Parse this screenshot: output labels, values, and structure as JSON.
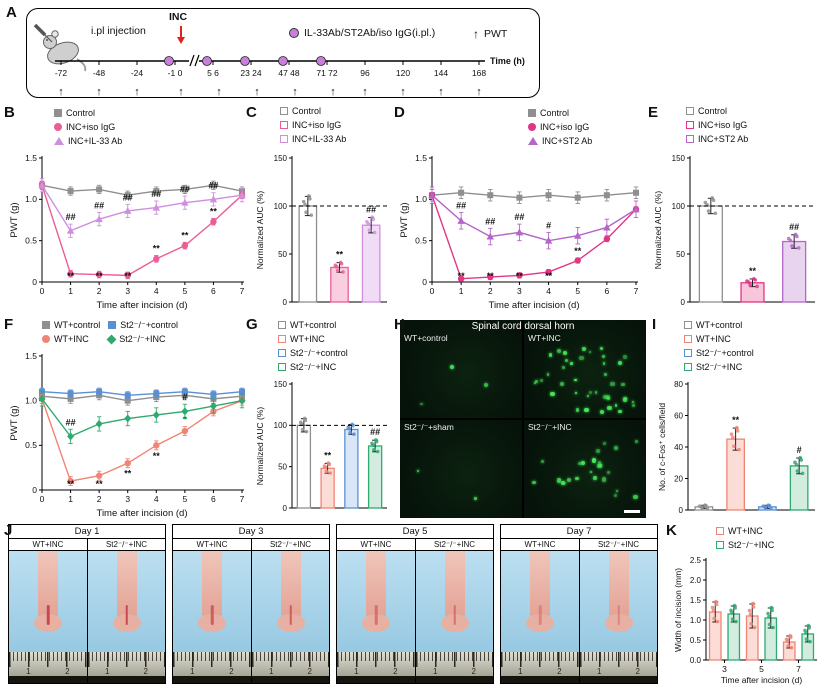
{
  "panel_labels": {
    "A": "A",
    "B": "B",
    "C": "C",
    "D": "D",
    "E": "E",
    "F": "F",
    "G": "G",
    "H": "H",
    "I": "I",
    "J": "J",
    "K": "K"
  },
  "panel_a": {
    "injection_label": "i.pl injection",
    "inc_label": "INC",
    "ab_legend": "IL-33Ab/ST2Ab/iso IgG(i.pl.)",
    "pwt_arrow": "↑",
    "pwt_legend": "PWT",
    "time_label": "Time (h)",
    "arrow_char": "↑",
    "circle_color": "#c77fd9",
    "ticks": [
      {
        "label": "-72",
        "arrow": true
      },
      {
        "label": "-48",
        "arrow": true
      },
      {
        "label": "-24",
        "arrow": true
      },
      {
        "label": "-1 0",
        "arrow": true,
        "circle": true,
        "inc": true,
        "break_after": true
      },
      {
        "label": "5 6",
        "arrow": true,
        "circle": true
      },
      {
        "label": "23 24",
        "arrow": true,
        "circle": true
      },
      {
        "label": "47 48",
        "arrow": true,
        "circle": true
      },
      {
        "label": "71 72",
        "arrow": true,
        "circle": true
      },
      {
        "label": "96",
        "arrow": true
      },
      {
        "label": "120",
        "arrow": true
      },
      {
        "label": "144",
        "arrow": true
      },
      {
        "label": "168",
        "arrow": true
      }
    ]
  },
  "legends": {
    "B": {
      "cols": 1,
      "items": [
        {
          "label": "Control",
          "marker": "square",
          "color": "#8f8f8f"
        },
        {
          "label": "INC+iso IgG",
          "marker": "circle",
          "color": "#ea5d97"
        },
        {
          "label": "INC+IL-33 Ab",
          "marker": "triangle",
          "color": "#cf8fdf"
        }
      ]
    },
    "C": {
      "cols": 1,
      "items": [
        {
          "label": "Control",
          "marker": "square-open",
          "color": "#8f8f8f"
        },
        {
          "label": "INC+iso IgG",
          "marker": "square-open",
          "color": "#ea5d97"
        },
        {
          "label": "INC+IL-33 Ab",
          "marker": "square-open",
          "color": "#cf8fdf"
        }
      ]
    },
    "D": {
      "cols": 1,
      "items": [
        {
          "label": "Control",
          "marker": "square",
          "color": "#8f8f8f"
        },
        {
          "label": "INC+iso IgG",
          "marker": "circle",
          "color": "#e13585"
        },
        {
          "label": "INC+ST2 Ab",
          "marker": "triangle",
          "color": "#b565c8"
        }
      ]
    },
    "E": {
      "cols": 1,
      "items": [
        {
          "label": "Control",
          "marker": "square-open",
          "color": "#8f8f8f"
        },
        {
          "label": "INC+iso IgG",
          "marker": "square-open",
          "color": "#e13585"
        },
        {
          "label": "INC+ST2 Ab",
          "marker": "square-open",
          "color": "#b565c8"
        }
      ]
    },
    "F": {
      "cols": 2,
      "items": [
        {
          "label": "WT+control",
          "marker": "square",
          "color": "#8f8f8f"
        },
        {
          "label": "St2⁻/⁻+control",
          "marker": "square",
          "color": "#5b8fd4"
        },
        {
          "label": "WT+INC",
          "marker": "circle",
          "color": "#f08575"
        },
        {
          "label": "St2⁻/⁻+INC",
          "marker": "diamond",
          "color": "#2eaa70"
        }
      ]
    },
    "G": {
      "cols": 1,
      "items": [
        {
          "label": "WT+control",
          "marker": "square-open",
          "color": "#8f8f8f"
        },
        {
          "label": "WT+INC",
          "marker": "square-open",
          "color": "#f08575"
        },
        {
          "label": "St2⁻/⁻+control",
          "marker": "square-open",
          "color": "#5b8fd4"
        },
        {
          "label": "St2⁻/⁻+INC",
          "marker": "square-open",
          "color": "#2eaa70"
        }
      ]
    },
    "I": {
      "cols": 1,
      "items": [
        {
          "label": "WT+control",
          "marker": "square-open",
          "color": "#8f8f8f"
        },
        {
          "label": "WT+INC",
          "marker": "square-open",
          "color": "#f08575"
        },
        {
          "label": "St2⁻/⁻+control",
          "marker": "square-open",
          "color": "#5b8fd4"
        },
        {
          "label": "St2⁻/⁻+INC",
          "marker": "square-open",
          "color": "#2eaa70"
        }
      ]
    },
    "K": {
      "cols": 1,
      "items": [
        {
          "label": "WT+INC",
          "marker": "square-open",
          "color": "#f08575"
        },
        {
          "label": "St2⁻/⁻+INC",
          "marker": "square-open",
          "color": "#2eaa70"
        }
      ]
    }
  },
  "chart_data": [
    {
      "panel": "B",
      "type": "line",
      "xlabel": "Time after incision (d)",
      "ylabel": "PWT (g)",
      "x": [
        0,
        1,
        2,
        3,
        4,
        5,
        6,
        7
      ],
      "ylim": [
        0,
        1.5
      ],
      "yticks": [
        0,
        0.5,
        1,
        1.5
      ],
      "ytick_labels": [
        "0",
        "0.5",
        "1.0",
        "1.5"
      ],
      "series": [
        {
          "name": "Control",
          "color": "#8f8f8f",
          "marker": "square",
          "err": 0.05,
          "values": [
            1.17,
            1.1,
            1.12,
            1.05,
            1.1,
            1.12,
            1.17,
            1.1
          ]
        },
        {
          "name": "INC+iso IgG",
          "color": "#ea5d97",
          "marker": "circle",
          "err": 0.04,
          "values": [
            1.17,
            0.1,
            0.09,
            0.08,
            0.28,
            0.44,
            0.73,
            1.05
          ],
          "ann_below": {
            "1": "**",
            "2": "**",
            "3": "**"
          },
          "ann_above": {
            "4": "**",
            "5": "**",
            "6": "**"
          }
        },
        {
          "name": "INC+IL-33 Ab",
          "color": "#cf8fdf",
          "marker": "triangle",
          "err": 0.08,
          "values": [
            1.17,
            0.62,
            0.76,
            0.86,
            0.9,
            0.96,
            1.0,
            1.05
          ],
          "ann_above": {
            "1": "##",
            "2": "##",
            "3": "##",
            "4": "##",
            "5": "##",
            "6": "##"
          }
        }
      ]
    },
    {
      "panel": "C",
      "type": "bar",
      "ylabel": "Normalized AUC (%)",
      "ylim": [
        0,
        150
      ],
      "yticks": [
        0,
        50,
        100,
        150
      ],
      "ytick_labels": [
        "0",
        "50",
        "100",
        "150"
      ],
      "dashed_line": 100,
      "categories": [
        "Control",
        "INC+iso IgG",
        "INC+IL-33 Ab"
      ],
      "values": [
        100,
        36,
        80
      ],
      "errors": [
        10,
        5,
        8
      ],
      "fill_colors": [
        "#ffffff",
        "#f9cfe0",
        "#f0dcf6"
      ],
      "edge_colors": [
        "#8f8f8f",
        "#ea5d97",
        "#cf8fdf"
      ],
      "annotations": [
        "",
        "**",
        "##"
      ]
    },
    {
      "panel": "D",
      "type": "line",
      "xlabel": "Time after incision (d)",
      "ylabel": "PWT (g)",
      "x": [
        0,
        1,
        2,
        3,
        4,
        5,
        6,
        7
      ],
      "ylim": [
        0,
        1.5
      ],
      "yticks": [
        0,
        0.5,
        1,
        1.5
      ],
      "ytick_labels": [
        "0",
        "0.5",
        "1.0",
        "1.5"
      ],
      "series": [
        {
          "name": "Control",
          "color": "#8f8f8f",
          "marker": "square",
          "err": 0.07,
          "values": [
            1.05,
            1.08,
            1.05,
            1.02,
            1.05,
            1.02,
            1.05,
            1.08
          ]
        },
        {
          "name": "INC+iso IgG",
          "color": "#e13585",
          "marker": "circle",
          "err": 0.03,
          "values": [
            1.05,
            0.04,
            0.06,
            0.08,
            0.12,
            0.26,
            0.52,
            0.88
          ],
          "ann_below": {
            "1": "**",
            "2": "**",
            "3": "**",
            "4": "**"
          },
          "ann_above": {
            "5": "**",
            "6": "*"
          }
        },
        {
          "name": "INC+ST2 Ab",
          "color": "#b565c8",
          "marker": "triangle",
          "err": 0.1,
          "values": [
            1.05,
            0.74,
            0.55,
            0.6,
            0.5,
            0.56,
            0.66,
            0.88
          ],
          "ann_above": {
            "1": "##",
            "2": "##",
            "3": "##",
            "4": "#"
          }
        }
      ]
    },
    {
      "panel": "E",
      "type": "bar",
      "ylabel": "Normalized AUC (%)",
      "ylim": [
        0,
        150
      ],
      "yticks": [
        0,
        50,
        100,
        150
      ],
      "ytick_labels": [
        "0",
        "50",
        "100",
        "150"
      ],
      "dashed_line": 100,
      "categories": [
        "Control",
        "INC+iso IgG",
        "INC+ST2 Ab"
      ],
      "values": [
        100,
        20,
        63
      ],
      "errors": [
        8,
        4,
        7
      ],
      "fill_colors": [
        "#ffffff",
        "#f7c6da",
        "#e9d4f0"
      ],
      "edge_colors": [
        "#8f8f8f",
        "#e13585",
        "#b565c8"
      ],
      "annotations": [
        "",
        "**",
        "##"
      ]
    },
    {
      "panel": "F",
      "type": "line",
      "xlabel": "Time after incision (d)",
      "ylabel": "PWT (g)",
      "x": [
        0,
        1,
        2,
        3,
        4,
        5,
        6,
        7
      ],
      "ylim": [
        0,
        1.5
      ],
      "yticks": [
        0,
        0.5,
        1,
        1.5
      ],
      "ytick_labels": [
        "0",
        "0.5",
        "1.0",
        "1.5"
      ],
      "series": [
        {
          "name": "WT+control",
          "color": "#8f8f8f",
          "marker": "square",
          "err": 0.05,
          "values": [
            1.05,
            1.02,
            1.06,
            1.0,
            1.04,
            1.06,
            1.02,
            1.05
          ]
        },
        {
          "name": "St2⁻/⁻+control",
          "color": "#5b8fd4",
          "marker": "square",
          "err": 0.04,
          "values": [
            1.1,
            1.08,
            1.1,
            1.06,
            1.08,
            1.1,
            1.07,
            1.1
          ]
        },
        {
          "name": "WT+INC",
          "color": "#f08575",
          "marker": "circle",
          "err": 0.05,
          "values": [
            1.02,
            0.1,
            0.16,
            0.3,
            0.5,
            0.66,
            0.88,
            1.0
          ],
          "ann_below": {
            "1": "**",
            "2": "**",
            "3": "**",
            "4": "**"
          },
          "ann_above": {
            "5": "*"
          }
        },
        {
          "name": "St2⁻/⁻+INC",
          "color": "#2eaa70",
          "marker": "diamond",
          "err": 0.08,
          "values": [
            1.02,
            0.6,
            0.74,
            0.8,
            0.84,
            0.88,
            0.94,
            1.0
          ],
          "ann_above": {
            "1": "##",
            "5": "#"
          }
        }
      ]
    },
    {
      "panel": "G",
      "type": "bar",
      "ylabel": "Normalized AUC (%)",
      "ylim": [
        0,
        150
      ],
      "yticks": [
        0,
        50,
        100,
        150
      ],
      "ytick_labels": [
        "0",
        "50",
        "100",
        "150"
      ],
      "dashed_line": 100,
      "categories": [
        "WT+control",
        "WT+INC",
        "St2⁻/⁻+control",
        "St2⁻/⁻+INC"
      ],
      "values": [
        100,
        48,
        95,
        75
      ],
      "errors": [
        8,
        6,
        6,
        7
      ],
      "fill_colors": [
        "#ffffff",
        "#fcdcd6",
        "#d8e6f7",
        "#d2ecdf"
      ],
      "edge_colors": [
        "#8f8f8f",
        "#f08575",
        "#5b8fd4",
        "#2eaa70"
      ],
      "annotations": [
        "",
        "**",
        "",
        "##"
      ]
    },
    {
      "panel": "I",
      "type": "bar",
      "ylabel": "No. of c-Fos⁺ cells/field",
      "ylim": [
        0,
        80
      ],
      "yticks": [
        0,
        20,
        40,
        60,
        80
      ],
      "ytick_labels": [
        "0",
        "20",
        "40",
        "60",
        "80"
      ],
      "categories": [
        "WT+control",
        "WT+INC",
        "St2⁻/⁻+control",
        "St2⁻/⁻+INC"
      ],
      "values": [
        2,
        45,
        2,
        28
      ],
      "errors": [
        1,
        7,
        1,
        5
      ],
      "fill_colors": [
        "#ffffff",
        "#fcdcd6",
        "#d8e6f7",
        "#d2ecdf"
      ],
      "edge_colors": [
        "#8f8f8f",
        "#f08575",
        "#5b8fd4",
        "#2eaa70"
      ],
      "annotations": [
        "",
        "**",
        "",
        "#"
      ]
    },
    {
      "panel": "K",
      "type": "bar-grouped",
      "xlabel": "Time after incision (d)",
      "ylabel": "Width of incision (mm)",
      "ylim": [
        0,
        2.5
      ],
      "yticks": [
        0,
        0.5,
        1,
        1.5,
        2,
        2.5
      ],
      "ytick_labels": [
        "0.0",
        "0.5",
        "1.0",
        "1.5",
        "2.0",
        "2.5"
      ],
      "categories": [
        "3",
        "5",
        "7"
      ],
      "series": [
        {
          "name": "WT+INC",
          "edge": "#f08575",
          "fill": "#fcdcd6",
          "values": [
            1.2,
            1.1,
            0.45
          ],
          "errors": [
            0.25,
            0.3,
            0.15
          ]
        },
        {
          "name": "St2⁻/⁻+INC",
          "edge": "#2eaa70",
          "fill": "#d2ecdf",
          "values": [
            1.15,
            1.05,
            0.65
          ],
          "errors": [
            0.2,
            0.25,
            0.2
          ]
        }
      ]
    }
  ],
  "panel_h": {
    "title": "Spinal cord dorsal horn",
    "dot_color": "#46e85c",
    "quadrants": [
      {
        "label": "WT+control",
        "dots": 3
      },
      {
        "label": "WT+INC",
        "dots": 42
      },
      {
        "label": "St2⁻/⁻+sham",
        "dots": 2
      },
      {
        "label": "St2⁻/⁻+INC",
        "dots": 24
      }
    ]
  },
  "panel_j": {
    "left_label": "WT+INC",
    "right_label": "St2⁻/⁻+INC",
    "ruler_numbers": [
      "1",
      "2"
    ],
    "days": [
      {
        "title": "Day 1",
        "incision_opacity": 1
      },
      {
        "title": "Day 3",
        "incision_opacity": 0.8
      },
      {
        "title": "Day 5",
        "incision_opacity": 0.6
      },
      {
        "title": "Day 7",
        "incision_opacity": 0.4
      }
    ]
  }
}
